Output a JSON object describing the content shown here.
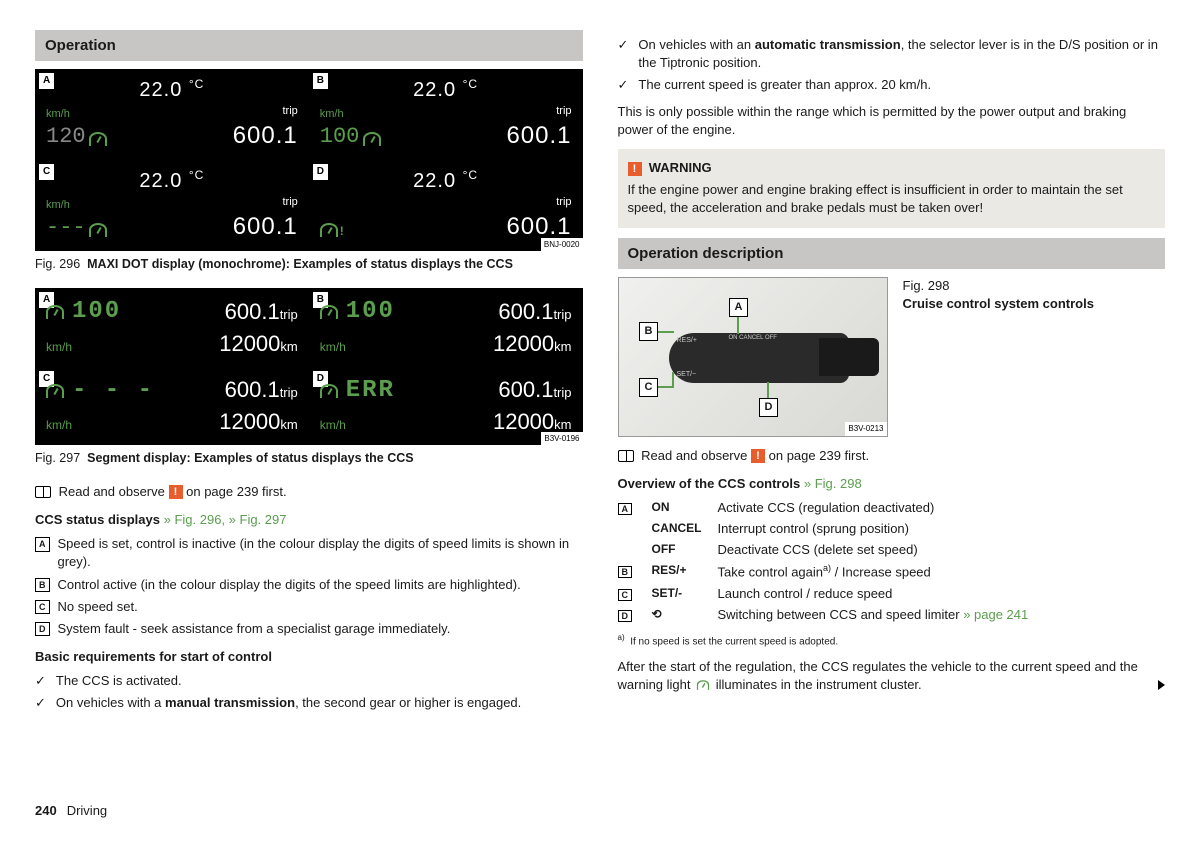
{
  "left": {
    "header1": "Operation",
    "grid1": {
      "code": "BNJ-0020",
      "cells": [
        {
          "label": "A",
          "temp": "22.0",
          "kmh": "km/h",
          "speed": "120",
          "trip_label": "trip",
          "trip": "600.1",
          "grey": true
        },
        {
          "label": "B",
          "temp": "22.0",
          "kmh": "km/h",
          "speed": "100",
          "trip_label": "trip",
          "trip": "600.1",
          "grey": false
        },
        {
          "label": "C",
          "temp": "22.0",
          "kmh": "km/h",
          "speed": "---",
          "trip_label": "trip",
          "trip": "600.1",
          "grey": false
        },
        {
          "label": "D",
          "temp": "22.0",
          "kmh": "",
          "speed": "",
          "trip_label": "trip",
          "trip": "600.1",
          "grey": false,
          "warn": true
        }
      ]
    },
    "caption1_a": "Fig. 296",
    "caption1_b": "MAXI DOT display (monochrome): Examples of status displays the CCS",
    "grid2": {
      "code": "B3V-0196",
      "cells": [
        {
          "label": "A",
          "speed": "100",
          "trip": "600.1",
          "total": "12000",
          "err": false,
          "dashes": false
        },
        {
          "label": "B",
          "speed": "100",
          "trip": "600.1",
          "total": "12000",
          "err": false,
          "dashes": false
        },
        {
          "label": "C",
          "speed": "- - -",
          "trip": "600.1",
          "total": "12000",
          "err": false,
          "dashes": true
        },
        {
          "label": "D",
          "speed": "ERR",
          "trip": "600.1",
          "total": "12000",
          "err": true,
          "dashes": false
        }
      ]
    },
    "caption2_a": "Fig. 297",
    "caption2_b": "Segment display: Examples of status displays the CCS",
    "read_observe": "Read and observe",
    "read_observe2": "on page 239 first.",
    "status_title": "CCS status displays",
    "fig_links": "» Fig. 296, » Fig. 297",
    "status_items": [
      {
        "l": "A",
        "t": "Speed is set, control is inactive (in the colour display the digits of speed limits is shown in grey)."
      },
      {
        "l": "B",
        "t": "Control active (in the colour display the digits of the speed limits are highlighted)."
      },
      {
        "l": "C",
        "t": "No speed set."
      },
      {
        "l": "D",
        "t": "System fault - seek assistance from a specialist garage immediately."
      }
    ],
    "basic_req": "Basic requirements for start of control",
    "checks": [
      {
        "t": "The CCS is activated."
      },
      {
        "t_pre": "On vehicles with a ",
        "t_b": "manual transmission",
        "t_post": ", the second gear or higher is engaged."
      }
    ]
  },
  "right": {
    "checks": [
      {
        "t_pre": "On vehicles with an ",
        "t_b": "automatic transmission",
        "t_post": ", the selector lever is in the D/S position or in the Tiptronic position."
      },
      {
        "t": "The current speed is greater than approx. 20 km/h."
      }
    ],
    "para1": "This is only possible within the range which is permitted by the power output and braking power of the engine.",
    "warning_title": "WARNING",
    "warning_body": "If the engine power and engine braking effect is insufficient in order to maintain the set speed, the acceleration and brake pedals must be taken over!",
    "header2": "Operation description",
    "fig298_a": "Fig. 298",
    "fig298_b": "Cruise control system controls",
    "stalk_code": "B3V-0213",
    "stalk_labels": {
      "A": "A",
      "B": "B",
      "C": "C",
      "D": "D"
    },
    "stalk_text": {
      "res": "RES/+",
      "set": "SET/−",
      "on": "ON",
      "cancel": "CANCEL",
      "off": "OFF"
    },
    "read_observe": "Read and observe",
    "read_observe2": "on page 239 first.",
    "overview_title": "Overview of the CCS controls",
    "overview_link": "» Fig. 298",
    "controls": [
      {
        "l": "A",
        "cmd": "ON",
        "d": "Activate CCS (regulation deactivated)"
      },
      {
        "l": "",
        "cmd": "CANCEL",
        "d": "Interrupt control (sprung position)"
      },
      {
        "l": "",
        "cmd": "OFF",
        "d": "Deactivate CCS (delete set speed)"
      },
      {
        "l": "B",
        "cmd": "RES/+",
        "d_pre": "Take control again",
        "d_sup": "a)",
        "d_post": " / Increase speed"
      },
      {
        "l": "C",
        "cmd": "SET/-",
        "d": "Launch control / reduce speed"
      },
      {
        "l": "D",
        "cmd": "⟲",
        "d_pre": "Switching between CCS and speed limiter ",
        "d_link": "» page 241"
      }
    ],
    "footnote_sup": "a)",
    "footnote": "If no speed is set the current speed is adopted.",
    "para2_pre": "After the start of the regulation, the CCS regulates the vehicle to the current speed and the warning light ",
    "para2_post": " illuminates in the instrument cluster."
  },
  "footer": {
    "page": "240",
    "section": "Driving"
  }
}
